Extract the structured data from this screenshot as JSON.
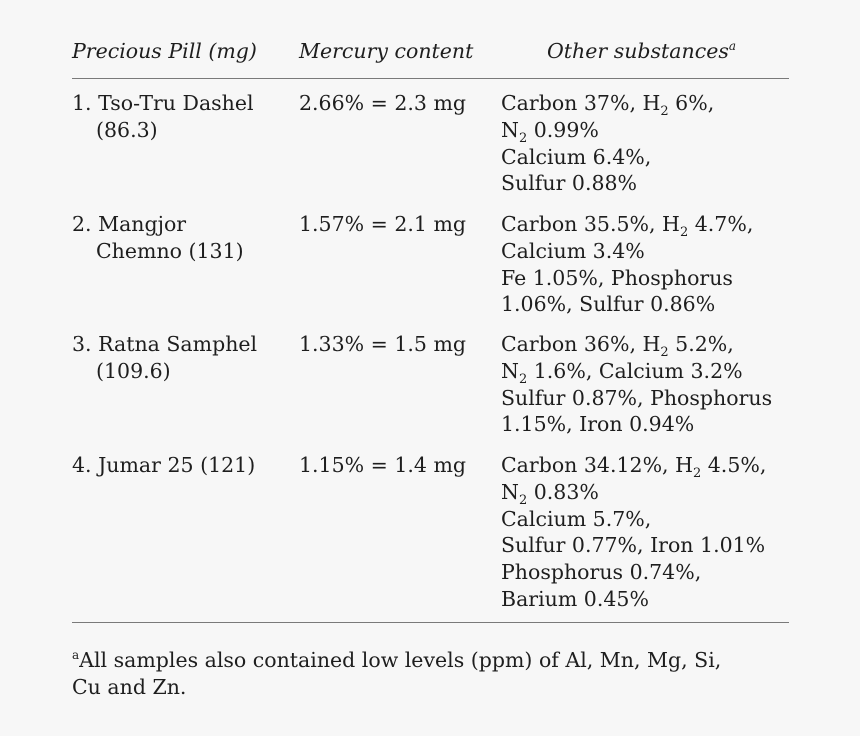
{
  "header": {
    "col1": "Precious Pill (mg)",
    "col2": "Mercury content",
    "col3": "Other substances",
    "col3_mark": "a"
  },
  "rows": [
    {
      "name_line1": "1. Tso-Tru Dashel",
      "name_line2": "(86.3)",
      "mercury": "2.66% = 2.3 mg",
      "subst": [
        {
          "pre": "Carbon 37%, H",
          "sub": "2",
          "post": " 6%,"
        },
        {
          "pre": "N",
          "sub": "2",
          "post": " 0.99%"
        },
        {
          "pre": "Calcium 6.4%,",
          "sub": "",
          "post": ""
        },
        {
          "pre": "Sulfur 0.88%",
          "sub": "",
          "post": ""
        }
      ]
    },
    {
      "name_line1": "2. Mangjor",
      "name_line2": "Chemno (131)",
      "mercury": "1.57% = 2.1 mg",
      "subst": [
        {
          "pre": "Carbon 35.5%, H",
          "sub": "2",
          "post": " 4.7%,"
        },
        {
          "pre": "Calcium 3.4%",
          "sub": "",
          "post": ""
        },
        {
          "pre": "Fe 1.05%, Phosphorus",
          "sub": "",
          "post": ""
        },
        {
          "pre": "1.06%, Sulfur 0.86%",
          "sub": "",
          "post": ""
        }
      ]
    },
    {
      "name_line1": "3. Ratna Samphel",
      "name_line2": "(109.6)",
      "mercury": "1.33% = 1.5 mg",
      "subst": [
        {
          "pre": "Carbon 36%, H",
          "sub": "2",
          "post": " 5.2%,"
        },
        {
          "pre": "N",
          "sub": "2",
          "post": " 1.6%, Calcium 3.2%"
        },
        {
          "pre": "Sulfur 0.87%, Phosphorus",
          "sub": "",
          "post": ""
        },
        {
          "pre": "1.15%, Iron 0.94%",
          "sub": "",
          "post": ""
        }
      ]
    },
    {
      "name_line1": "4. Jumar 25 (121)",
      "name_line2": "",
      "mercury": "1.15% = 1.4 mg",
      "subst": [
        {
          "pre": "Carbon 34.12%, H",
          "sub": "2",
          "post": " 4.5%,"
        },
        {
          "pre": "N",
          "sub": "2",
          "post": " 0.83%"
        },
        {
          "pre": "Calcium 5.7%,",
          "sub": "",
          "post": ""
        },
        {
          "pre": "Sulfur 0.77%, Iron 1.01%",
          "sub": "",
          "post": ""
        },
        {
          "pre": "Phosphorus 0.74%,",
          "sub": "",
          "post": ""
        },
        {
          "pre": "Barium 0.45%",
          "sub": "",
          "post": ""
        }
      ]
    }
  ],
  "footnote": {
    "mark": "a",
    "text": "All samples also contained low levels (ppm) of Al, Mn, Mg, Si,",
    "text2": "Cu and Zn."
  }
}
